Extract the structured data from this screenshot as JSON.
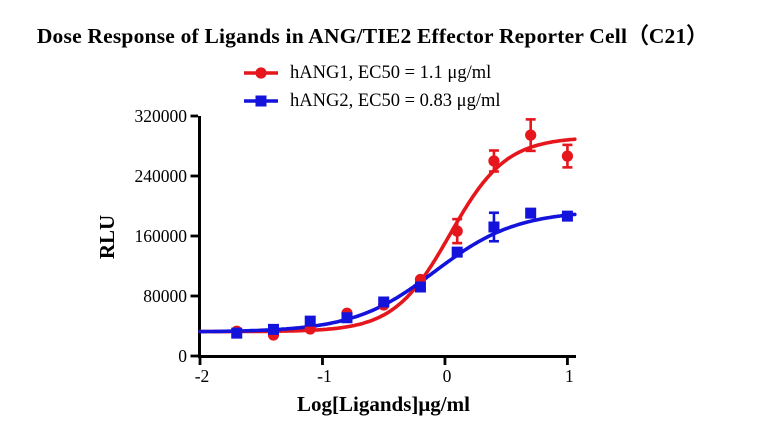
{
  "title": "Dose Response of Ligands in ANG/TIE2 Effector Reporter Cell（C21）",
  "legend": [
    {
      "label": "hANG1, EC50 = 1.1 μg/ml",
      "color": "#e6161d",
      "marker": "circle"
    },
    {
      "label": "hANG2, EC50 = 0.83 μg/ml",
      "color": "#1313dc",
      "marker": "square"
    }
  ],
  "chart_data": {
    "type": "scatter",
    "title": "Dose Response of Ligands in ANG/TIE2 Effector Reporter Cell（C21）",
    "xlabel": "Log[Ligands]μg/ml",
    "ylabel": "RLU",
    "xlim": [
      -2,
      1.07
    ],
    "ylim": [
      0,
      320000
    ],
    "x_ticks": [
      -2,
      -1,
      0,
      1
    ],
    "y_ticks": [
      0,
      80000,
      160000,
      240000,
      320000
    ],
    "grid": false,
    "legend_position": "top",
    "x": [
      -1.7,
      -1.4,
      -1.1,
      -0.8,
      -0.5,
      -0.2,
      0.1,
      0.4,
      0.7,
      1.0
    ],
    "series": [
      {
        "name": "hANG1, EC50 = 1.1 μg/ml",
        "color": "#e6161d",
        "marker": "circle",
        "values": [
          33000,
          28000,
          36000,
          57000,
          68000,
          102000,
          166500,
          260000,
          294500,
          266500
        ],
        "errors": [
          0,
          0,
          0,
          0,
          0,
          0,
          16000,
          14000,
          21000,
          15000
        ],
        "fit": {
          "bottom": 32500,
          "top": 292000,
          "hill": 1.9,
          "logec50": 0.0414,
          "ec50_label": "1.1 μg/ml"
        }
      },
      {
        "name": "hANG2, EC50 = 0.83 μg/ml",
        "color": "#1313dc",
        "marker": "square",
        "values": [
          30500,
          35500,
          46500,
          51000,
          72000,
          92000,
          138500,
          172000,
          190500,
          186500
        ],
        "errors": [
          0,
          0,
          0,
          0,
          0,
          0,
          0,
          19000,
          0,
          0
        ],
        "fit": {
          "bottom": 32000,
          "top": 194000,
          "hill": 1.3,
          "logec50": -0.0809,
          "ec50_label": "0.83 μg/ml"
        }
      }
    ]
  }
}
